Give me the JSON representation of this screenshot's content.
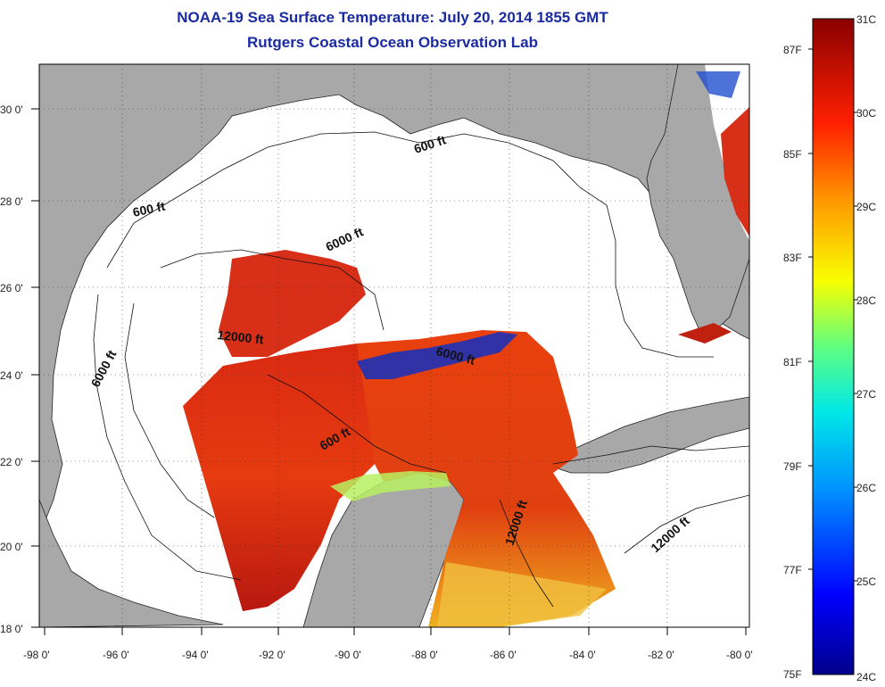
{
  "title": "NOAA-19 Sea Surface Temperature:  July 20, 2014 1855 GMT",
  "subtitle": "Rutgers Coastal Ocean Observation Lab",
  "map": {
    "lon_labels": [
      "-98 0'",
      "-96 0'",
      "-94 0'",
      "-92 0'",
      "-90 0'",
      "-88 0'",
      "-86 0'",
      "-84 0'",
      "-82 0'",
      "-80 0'"
    ],
    "lat_labels": [
      "30 0'",
      "28 0'",
      "26 0'",
      "24 0'",
      "22 0'",
      "20 0'",
      "18 0'"
    ],
    "contour_labels": [
      "600 ft",
      "600 ft",
      "6000 ft",
      "6000 ft",
      "12000 ft",
      "6000 ft",
      "600 ft",
      "12000 ft",
      "12000 ft"
    ]
  },
  "colorbar": {
    "celsius_labels": [
      "31C",
      "30C",
      "29C",
      "28C",
      "27C",
      "26C",
      "25C",
      "24C"
    ],
    "fahrenheit_labels": [
      "87F",
      "85F",
      "83F",
      "81F",
      "79F",
      "77F",
      "75F"
    ]
  }
}
